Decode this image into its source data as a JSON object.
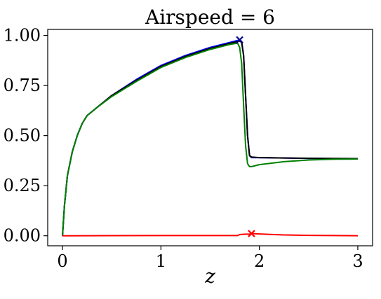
{
  "chart_data": {
    "type": "line",
    "title": "Airspeed = 6",
    "xlabel": "z",
    "ylabel": "",
    "xlim": [
      -0.15,
      3.15
    ],
    "ylim": [
      -0.05,
      1.03
    ],
    "xticks": [
      0,
      1,
      2,
      3
    ],
    "xtick_labels": [
      "0",
      "1",
      "2",
      "3"
    ],
    "yticks": [
      0.0,
      0.25,
      0.5,
      0.75,
      1.0
    ],
    "ytick_labels": [
      "0.00",
      "0.25",
      "0.50",
      "0.75",
      "1.00"
    ],
    "grid": false,
    "legend": "none",
    "series": [
      {
        "color": "#0000ff",
        "x": [
          0,
          0.02,
          0.05,
          0.1,
          0.15,
          0.2,
          0.25,
          0.35,
          0.5,
          0.75,
          1.0,
          1.25,
          1.5,
          1.7,
          1.78,
          1.8,
          1.82,
          1.84,
          1.86,
          1.88,
          1.9,
          1.92,
          2.0,
          2.25,
          2.5,
          2.75,
          3.0
        ],
        "y": [
          0,
          0.15,
          0.3,
          0.42,
          0.5,
          0.56,
          0.6,
          0.64,
          0.7,
          0.78,
          0.85,
          0.9,
          0.94,
          0.965,
          0.975,
          0.978,
          0.97,
          0.9,
          0.7,
          0.5,
          0.4,
          0.39,
          0.39,
          0.388,
          0.386,
          0.385,
          0.385
        ]
      },
      {
        "color": "#000000",
        "x": [
          0,
          0.02,
          0.05,
          0.1,
          0.15,
          0.2,
          0.25,
          0.35,
          0.5,
          0.75,
          1.0,
          1.25,
          1.5,
          1.7,
          1.78,
          1.8,
          1.82,
          1.84,
          1.86,
          1.88,
          1.9,
          1.92,
          2.0,
          2.25,
          2.5,
          2.75,
          3.0
        ],
        "y": [
          0,
          0.15,
          0.3,
          0.42,
          0.5,
          0.56,
          0.6,
          0.64,
          0.7,
          0.775,
          0.845,
          0.895,
          0.935,
          0.96,
          0.97,
          0.972,
          0.965,
          0.9,
          0.7,
          0.5,
          0.4,
          0.393,
          0.39,
          0.388,
          0.387,
          0.386,
          0.385
        ]
      },
      {
        "color": "#008000",
        "x": [
          0,
          0.02,
          0.05,
          0.1,
          0.15,
          0.2,
          0.25,
          0.35,
          0.5,
          0.75,
          1.0,
          1.25,
          1.5,
          1.7,
          1.76,
          1.78,
          1.8,
          1.82,
          1.84,
          1.86,
          1.88,
          1.9,
          1.92,
          2.0,
          2.25,
          2.5,
          2.75,
          3.0
        ],
        "y": [
          0,
          0.15,
          0.3,
          0.42,
          0.5,
          0.56,
          0.6,
          0.64,
          0.695,
          0.77,
          0.84,
          0.89,
          0.93,
          0.955,
          0.96,
          0.96,
          0.94,
          0.86,
          0.65,
          0.45,
          0.36,
          0.345,
          0.345,
          0.355,
          0.37,
          0.378,
          0.382,
          0.383
        ]
      },
      {
        "color": "#ff0000",
        "x": [
          0,
          0.5,
          1.0,
          1.5,
          1.75,
          1.78,
          1.8,
          1.82,
          1.86,
          1.9,
          1.92,
          2.0,
          2.25,
          2.5,
          2.75,
          3.0
        ],
        "y": [
          0,
          0.0005,
          0.001,
          0.001,
          0.001,
          0.001,
          0.006,
          0.007,
          0.008,
          0.008,
          0.011,
          0.009,
          0.004,
          0.002,
          0.001,
          0.0
        ]
      }
    ],
    "markers": [
      {
        "x": 1.8,
        "y": 0.978,
        "color": "#00008b",
        "symbol": "x"
      },
      {
        "x": 1.92,
        "y": 0.011,
        "color": "#ff0000",
        "symbol": "x"
      }
    ]
  }
}
